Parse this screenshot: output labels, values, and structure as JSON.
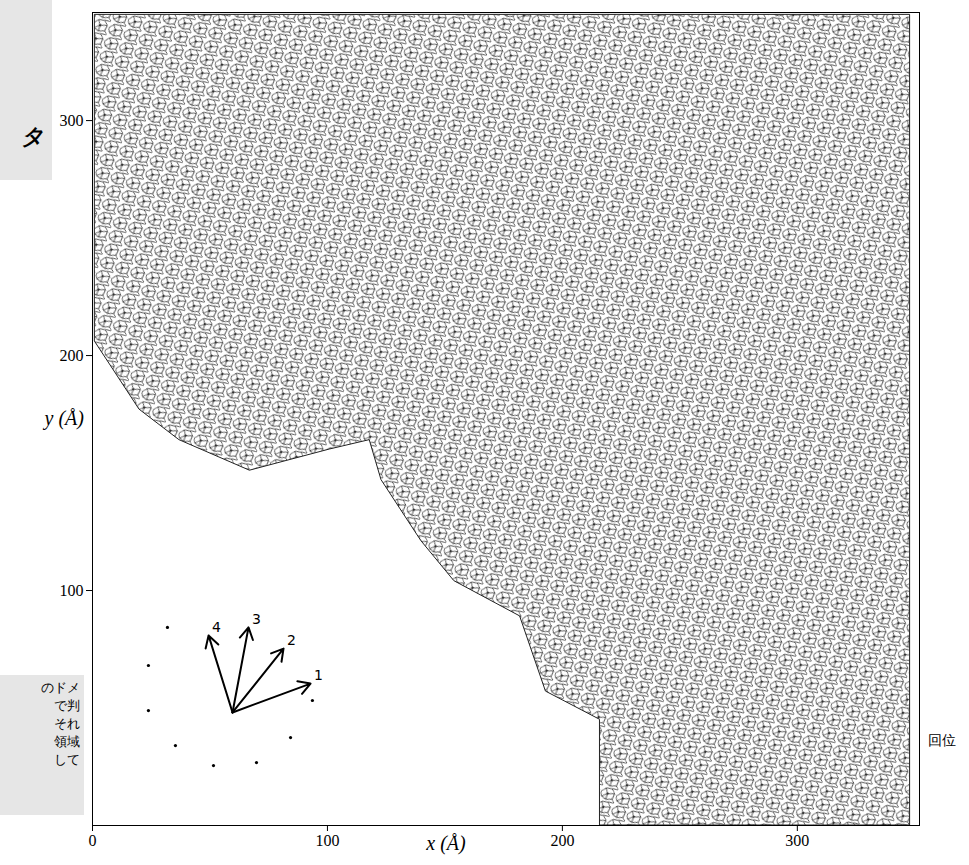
{
  "chart_data": {
    "type": "tiling",
    "xlabel": "x (Å)",
    "ylabel": "y (Å)",
    "xlim": [
      0,
      352
    ],
    "ylim": [
      0,
      346
    ],
    "xticks": [
      0,
      100,
      200,
      300
    ],
    "yticks": [
      100,
      200,
      300
    ],
    "region": {
      "x": [
        1,
        348,
        348,
        216,
        216,
        193,
        182,
        154,
        140,
        123,
        118,
        101,
        67,
        37,
        20,
        1
      ],
      "y": [
        345,
        345,
        0,
        0,
        45,
        57,
        89,
        104,
        121,
        147,
        164,
        160,
        151,
        164,
        177,
        206
      ]
    },
    "vectors": {
      "origin": [
        59.6,
        48.1
      ],
      "tips": [
        {
          "label": "1",
          "x": 92.8,
          "y": 60.4
        },
        {
          "label": "2",
          "x": 81.3,
          "y": 75.3
        },
        {
          "label": "3",
          "x": 66.4,
          "y": 84.3
        },
        {
          "label": "4",
          "x": 49.4,
          "y": 80.9
        }
      ]
    },
    "dots": {
      "x": [
        31.9,
        23.8,
        23.8,
        35.3,
        51.5,
        69.8,
        84.3,
        93.6
      ],
      "y": [
        84.3,
        68.1,
        48.9,
        34.0,
        25.5,
        26.8,
        37.4,
        53.2
      ]
    },
    "annotations": [
      {
        "text": "回位",
        "y": 36
      }
    ],
    "side_notes": {
      "top": [
        "タ"
      ],
      "bottom": [
        "のドメ",
        "で判",
        "それ",
        "領域",
        "して"
      ]
    }
  }
}
